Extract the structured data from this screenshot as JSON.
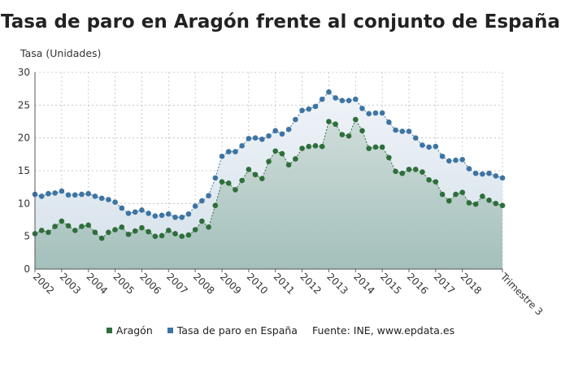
{
  "chart_data": {
    "type": "area",
    "title": "Tasa de paro en Aragón frente al conjunto de España",
    "ylabel": "Tasa (Unidades)",
    "xlabel": "",
    "ylim": [
      0,
      30
    ],
    "yticks": [
      0,
      5,
      10,
      15,
      20,
      25,
      30
    ],
    "grid": true,
    "legend_position": "bottom",
    "x_tick_labels": [
      "2002",
      "2003",
      "2004",
      "2005",
      "2006",
      "2007",
      "2008",
      "2009",
      "2010",
      "2011",
      "2012",
      "2013",
      "2014",
      "2015",
      "2016",
      "2017",
      "2018",
      "Trimestre 3"
    ],
    "x_tick_indices": [
      0,
      4,
      8,
      12,
      16,
      20,
      24,
      28,
      32,
      36,
      40,
      44,
      48,
      52,
      56,
      60,
      64,
      70
    ],
    "series": [
      {
        "name": "Aragón",
        "color": "#2e6e3a",
        "fill": "#a7c4bd",
        "values": [
          5.4,
          5.9,
          5.6,
          6.5,
          7.3,
          6.6,
          5.9,
          6.5,
          6.7,
          5.6,
          4.7,
          5.6,
          6.0,
          6.4,
          5.3,
          5.8,
          6.3,
          5.7,
          5.0,
          5.1,
          5.9,
          5.4,
          5.0,
          5.2,
          6.0,
          7.3,
          6.4,
          9.7,
          13.3,
          13.1,
          12.1,
          13.5,
          15.2,
          14.4,
          13.8,
          16.4,
          18.0,
          17.6,
          15.9,
          16.8,
          18.4,
          18.7,
          18.8,
          18.7,
          22.5,
          22.1,
          20.5,
          20.3,
          22.8,
          21.1,
          18.4,
          18.6,
          18.6,
          17.0,
          14.9,
          14.6,
          15.2,
          15.2,
          14.8,
          13.6,
          13.3,
          11.4,
          10.4,
          11.4,
          11.7,
          10.1,
          9.9,
          11.1,
          10.5,
          10.0,
          9.7
        ]
      },
      {
        "name": "Tasa de paro en España",
        "color": "#3d74a3",
        "fill": "#dbe6ee",
        "values": [
          11.4,
          11.1,
          11.5,
          11.6,
          11.9,
          11.3,
          11.3,
          11.4,
          11.5,
          11.1,
          10.8,
          10.6,
          10.2,
          9.3,
          8.5,
          8.7,
          9.0,
          8.5,
          8.1,
          8.2,
          8.4,
          7.9,
          7.9,
          8.4,
          9.6,
          10.4,
          11.2,
          13.9,
          17.2,
          17.9,
          17.9,
          18.8,
          19.9,
          20.0,
          19.8,
          20.3,
          21.1,
          20.6,
          21.3,
          22.8,
          24.2,
          24.4,
          24.8,
          25.9,
          27.0,
          26.1,
          25.7,
          25.7,
          25.9,
          24.5,
          23.7,
          23.8,
          23.8,
          22.4,
          21.2,
          21.0,
          21.0,
          20.0,
          18.9,
          18.6,
          18.7,
          17.2,
          16.5,
          16.6,
          16.7,
          15.3,
          14.6,
          14.5,
          14.6,
          14.2,
          13.9
        ]
      }
    ]
  },
  "legend": {
    "items": [
      "Aragón",
      "Tasa de paro en España"
    ],
    "source": "Fuente: INE, www.epdata.es"
  }
}
